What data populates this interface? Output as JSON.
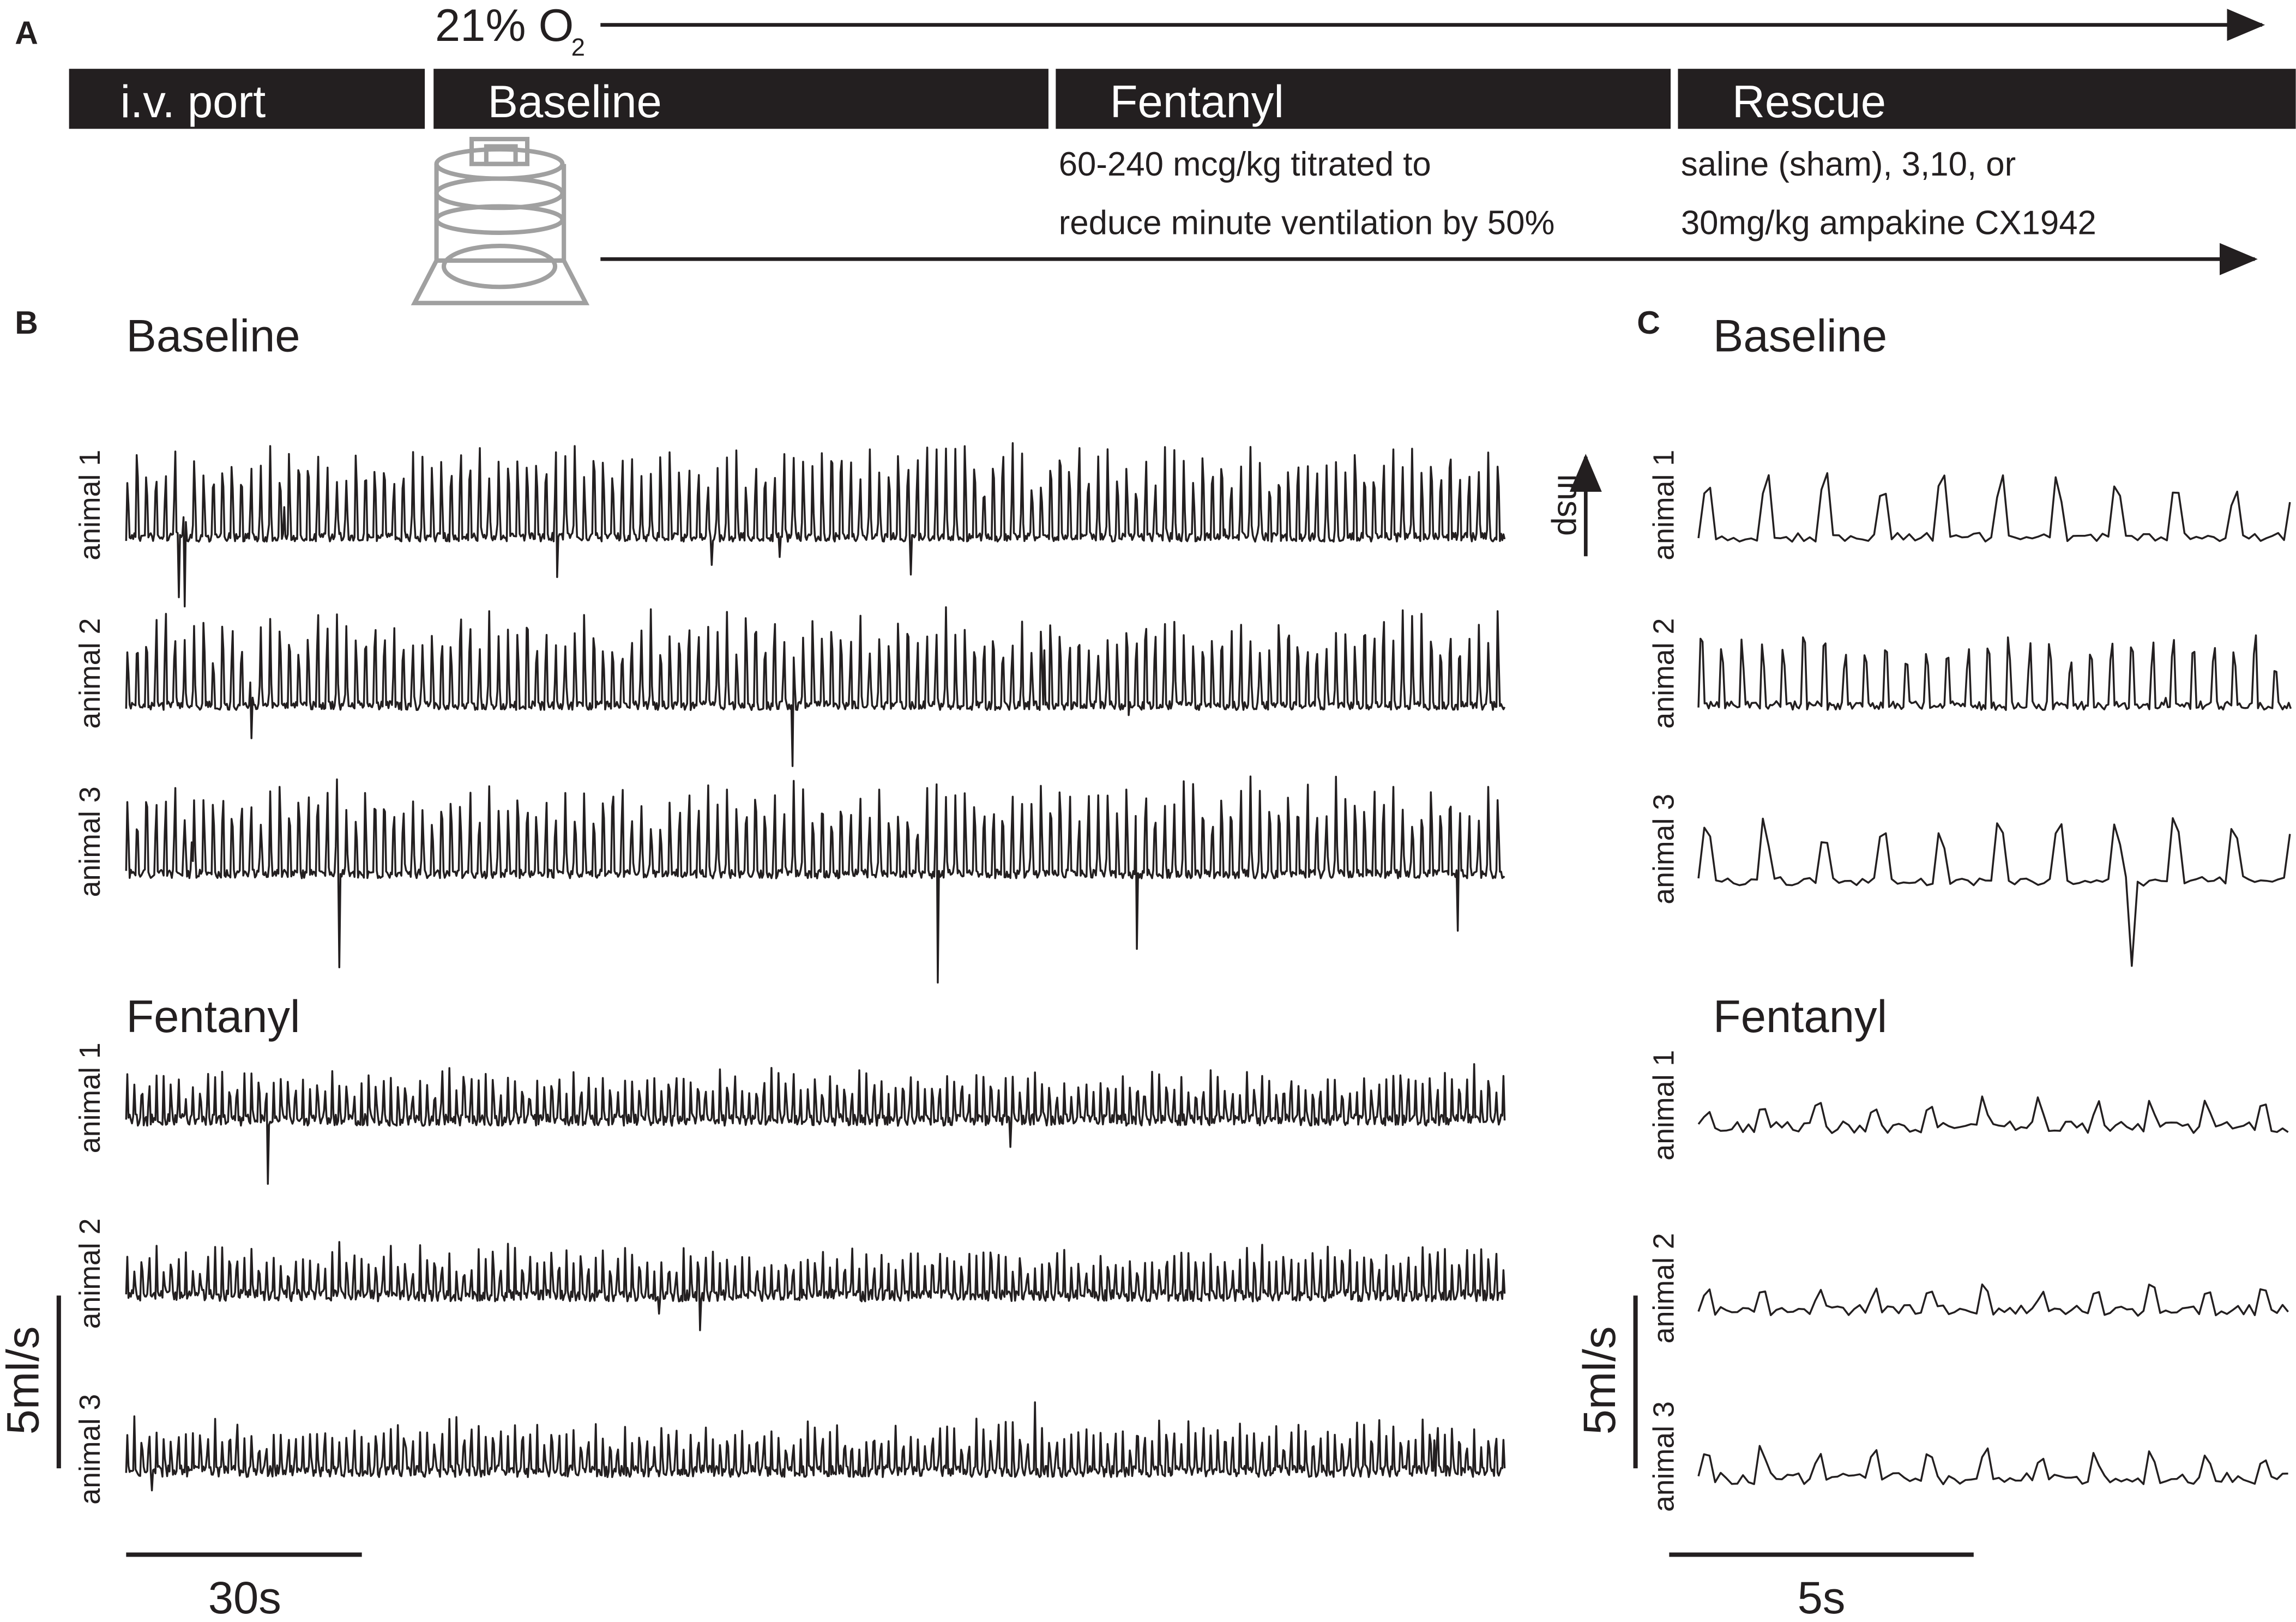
{
  "panel_a": {
    "label": "A",
    "oxygen": {
      "text": "21% O",
      "subscript": "2"
    },
    "phases": [
      "i.v. port",
      "Baseline",
      "Fentanyl",
      "Rescue"
    ],
    "fentanyl_note": [
      "60-240 mcg/kg titrated to",
      "reduce minute ventilation by 50%"
    ],
    "rescue_note": [
      "saline (sham), 3,10, or",
      "30mg/kg ampakine CX1942"
    ]
  },
  "panel_b": {
    "label": "B",
    "sections": [
      {
        "title": "Baseline",
        "animals": [
          "animal 1",
          "animal 2",
          "animal 3"
        ]
      },
      {
        "title": "Fentanyl",
        "animals": [
          "animal 1",
          "animal 2",
          "animal 3"
        ]
      }
    ],
    "insp_label": "insp",
    "scale_y": "5ml/s",
    "scale_x": "30s"
  },
  "panel_c": {
    "label": "C",
    "sections": [
      {
        "title": "Baseline",
        "animals": [
          "animal 1",
          "animal 2",
          "animal 3"
        ]
      },
      {
        "title": "Fentanyl",
        "animals": [
          "animal 1",
          "animal 2",
          "animal 3"
        ]
      }
    ],
    "scale_y": "5ml/s",
    "scale_x": "5s"
  }
}
